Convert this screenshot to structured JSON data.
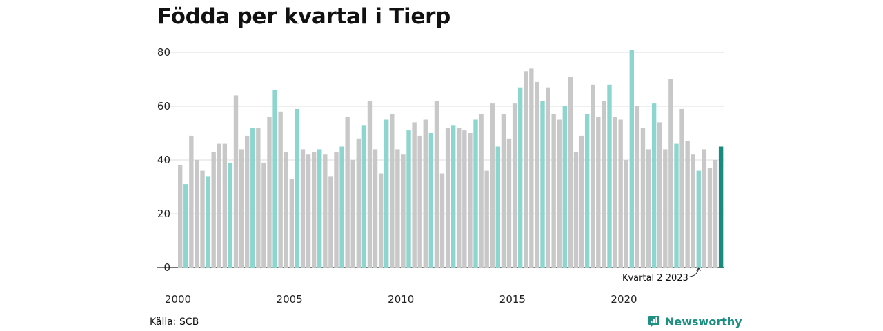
{
  "title": "Födda per kvartal i Tierp",
  "source": "Källa: SCB",
  "brand": "Newsworthy",
  "colors": {
    "highlight": "#8dd6cf",
    "other": "#c8c8c8",
    "latest": "#1a8a7e",
    "grid": "#dddddd"
  },
  "chart_data": {
    "type": "bar",
    "title": "Födda per kvartal i Tierp",
    "xlabel": "",
    "ylabel": "",
    "ylim": [
      0,
      80
    ],
    "yticks": [
      0,
      20,
      40,
      60,
      80
    ],
    "xticks": [
      "2000",
      "2005",
      "2010",
      "2015",
      "2020"
    ],
    "grid": true,
    "highlight_quarter": 2,
    "annotation": {
      "text": "Kvartal 2 2023",
      "target_index": 93
    },
    "categories": [
      "2000 K1",
      "2000 K2",
      "2000 K3",
      "2000 K4",
      "2001 K1",
      "2001 K2",
      "2001 K3",
      "2001 K4",
      "2002 K1",
      "2002 K2",
      "2002 K3",
      "2002 K4",
      "2003 K1",
      "2003 K2",
      "2003 K3",
      "2003 K4",
      "2004 K1",
      "2004 K2",
      "2004 K3",
      "2004 K4",
      "2005 K1",
      "2005 K2",
      "2005 K3",
      "2005 K4",
      "2006 K1",
      "2006 K2",
      "2006 K3",
      "2006 K4",
      "2007 K1",
      "2007 K2",
      "2007 K3",
      "2007 K4",
      "2008 K1",
      "2008 K2",
      "2008 K3",
      "2008 K4",
      "2009 K1",
      "2009 K2",
      "2009 K3",
      "2009 K4",
      "2010 K1",
      "2010 K2",
      "2010 K3",
      "2010 K4",
      "2011 K1",
      "2011 K2",
      "2011 K3",
      "2011 K4",
      "2012 K1",
      "2012 K2",
      "2012 K3",
      "2012 K4",
      "2013 K1",
      "2013 K2",
      "2013 K3",
      "2013 K4",
      "2014 K1",
      "2014 K2",
      "2014 K3",
      "2014 K4",
      "2015 K1",
      "2015 K2",
      "2015 K3",
      "2015 K4",
      "2016 K1",
      "2016 K2",
      "2016 K3",
      "2016 K4",
      "2017 K1",
      "2017 K2",
      "2017 K3",
      "2017 K4",
      "2018 K1",
      "2018 K2",
      "2018 K3",
      "2018 K4",
      "2019 K1",
      "2019 K2",
      "2019 K3",
      "2019 K4",
      "2020 K1",
      "2020 K2",
      "2020 K3",
      "2020 K4",
      "2021 K1",
      "2021 K2",
      "2021 K3",
      "2021 K4",
      "2022 K1",
      "2022 K2",
      "2022 K3",
      "2022 K4",
      "2023 K1",
      "2023 K2",
      "2023 K3",
      "2023 K4",
      "2024 K1",
      "2024 K2"
    ],
    "values": [
      38,
      31,
      49,
      40,
      36,
      34,
      43,
      46,
      46,
      39,
      64,
      44,
      49,
      52,
      52,
      39,
      56,
      66,
      58,
      43,
      33,
      59,
      44,
      42,
      43,
      44,
      42,
      34,
      43,
      45,
      56,
      40,
      48,
      53,
      62,
      44,
      35,
      55,
      57,
      44,
      42,
      51,
      54,
      49,
      55,
      50,
      62,
      35,
      52,
      53,
      52,
      51,
      50,
      55,
      57,
      36,
      61,
      45,
      57,
      48,
      61,
      67,
      73,
      74,
      69,
      62,
      67,
      57,
      55,
      60,
      71,
      43,
      49,
      57,
      68,
      56,
      62,
      68,
      56,
      55,
      40,
      81,
      60,
      52,
      44,
      61,
      54,
      44,
      70,
      46,
      59,
      47,
      42,
      36,
      44,
      37,
      40,
      45
    ]
  }
}
